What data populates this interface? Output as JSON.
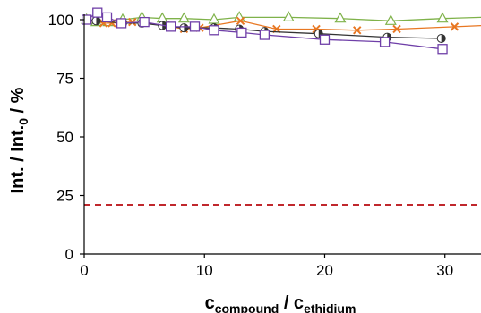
{
  "chart_data": {
    "type": "scatter",
    "xlabel": {
      "main": "c",
      "sub1": "compound",
      "sep": " / c",
      "sub2": "ethidium"
    },
    "ylabel": {
      "pre": "Int. / Int.",
      "sub": "0",
      "post": " / %"
    },
    "xlim": [
      0,
      33
    ],
    "ylim": [
      0,
      100
    ],
    "xticks": [
      "0",
      "10",
      "20",
      "30"
    ],
    "yticks": [
      "0",
      "25",
      "50",
      "75",
      "100"
    ],
    "grid": false,
    "legend": "none",
    "reference_line": {
      "y": 21,
      "color": "#c0282d",
      "style": "dashed"
    },
    "series": [
      {
        "marker": "triangle",
        "color": "#7fb24a",
        "points": [
          [
            0.2,
            100
          ],
          [
            1,
            99
          ],
          [
            2,
            99
          ],
          [
            3.2,
            100
          ],
          [
            4.8,
            101
          ],
          [
            6.5,
            100.5
          ],
          [
            8.3,
            100.5
          ],
          [
            10.8,
            100
          ],
          [
            12.9,
            101
          ],
          [
            17,
            101
          ],
          [
            21.3,
            100.5
          ],
          [
            25.5,
            99.5
          ],
          [
            29.8,
            100.5
          ],
          [
            33,
            101
          ]
        ]
      },
      {
        "marker": "cross",
        "color": "#e87722",
        "points": [
          [
            0.3,
            100
          ],
          [
            1.6,
            98.5
          ],
          [
            2.3,
            98.5
          ],
          [
            4,
            99
          ],
          [
            6.8,
            97.5
          ],
          [
            8.3,
            96
          ],
          [
            9.6,
            96.5
          ],
          [
            13,
            99.5
          ],
          [
            16,
            96
          ],
          [
            19.3,
            96
          ],
          [
            22.7,
            95.5
          ],
          [
            26,
            96
          ],
          [
            30.8,
            97
          ],
          [
            33,
            97.5
          ]
        ]
      },
      {
        "marker": "half-circle",
        "color": "#333333",
        "points": [
          [
            0.2,
            100
          ],
          [
            1,
            99.5
          ],
          [
            3.2,
            98.5
          ],
          [
            4.8,
            98.5
          ],
          [
            6.5,
            97.5
          ],
          [
            8.3,
            96.5
          ],
          [
            10.8,
            96.5
          ],
          [
            12.9,
            96
          ],
          [
            15,
            95
          ],
          [
            19.5,
            94
          ],
          [
            25.2,
            92.5
          ],
          [
            29.7,
            92
          ]
        ]
      },
      {
        "marker": "square",
        "color": "#6f3fa8",
        "points": [
          [
            0.2,
            100
          ],
          [
            1.1,
            103
          ],
          [
            1.9,
            101
          ],
          [
            3.1,
            98.5
          ],
          [
            5,
            99
          ],
          [
            7.2,
            97
          ],
          [
            9.2,
            97
          ],
          [
            10.8,
            95.5
          ],
          [
            13.1,
            94.5
          ],
          [
            15,
            93.5
          ],
          [
            20,
            91.5
          ],
          [
            25,
            90.5
          ],
          [
            29.8,
            87.5
          ]
        ]
      }
    ]
  }
}
